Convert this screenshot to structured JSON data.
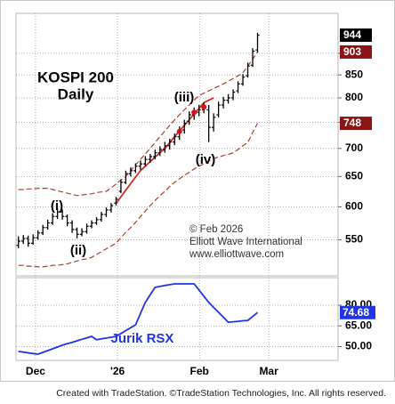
{
  "chart_data": [
    {
      "type": "ohlc",
      "title": "KOSPI 200",
      "subtitle": "Daily",
      "log_scale": true,
      "grid": true,
      "xlim": [
        -0.5,
        65.5
      ],
      "ylim": [
        500,
        1000
      ],
      "yticks": [
        550,
        600,
        650,
        700,
        750,
        800,
        850,
        900
      ],
      "color": "#000000",
      "open": [
        542,
        548,
        552,
        545,
        553,
        560,
        568,
        575,
        585,
        592,
        585,
        575,
        565,
        558,
        562,
        570,
        575,
        580,
        588,
        595,
        606,
        625,
        640,
        655,
        660,
        668,
        672,
        680,
        685,
        692,
        698,
        705,
        712,
        722,
        735,
        752,
        765,
        770,
        775,
        775,
        740,
        765,
        785,
        795,
        800,
        815,
        830,
        848,
        872,
        908
      ],
      "high": [
        555,
        557,
        556,
        558,
        564,
        572,
        580,
        590,
        598,
        596,
        588,
        579,
        568,
        567,
        574,
        579,
        584,
        592,
        599,
        606,
        616,
        645,
        660,
        666,
        673,
        678,
        686,
        690,
        698,
        704,
        712,
        718,
        728,
        742,
        755,
        772,
        780,
        785,
        790,
        785,
        768,
        792,
        802,
        808,
        818,
        836,
        852,
        878,
        912,
        950
      ],
      "low": [
        538,
        544,
        540,
        543,
        550,
        557,
        565,
        572,
        581,
        580,
        570,
        560,
        552,
        555,
        559,
        567,
        572,
        577,
        584,
        591,
        602,
        622,
        637,
        650,
        656,
        662,
        668,
        674,
        680,
        686,
        692,
        698,
        706,
        716,
        728,
        745,
        755,
        762,
        768,
        712,
        732,
        760,
        778,
        788,
        795,
        810,
        826,
        844,
        868,
        902
      ],
      "close": [
        548,
        552,
        545,
        553,
        560,
        568,
        575,
        585,
        592,
        585,
        575,
        565,
        558,
        562,
        570,
        575,
        580,
        588,
        595,
        602,
        612,
        640,
        655,
        660,
        668,
        672,
        680,
        685,
        692,
        698,
        705,
        712,
        722,
        735,
        748,
        765,
        770,
        775,
        782,
        740,
        760,
        785,
        795,
        800,
        812,
        830,
        845,
        870,
        905,
        944
      ],
      "markers": {
        "color": "#e01010",
        "values": [
          null,
          null,
          null,
          null,
          null,
          null,
          null,
          null,
          null,
          null,
          null,
          null,
          null,
          null,
          null,
          null,
          null,
          null,
          null,
          null,
          null,
          null,
          null,
          null,
          null,
          null,
          null,
          null,
          null,
          null,
          null,
          null,
          null,
          732,
          null,
          null,
          770,
          null,
          781,
          null,
          null,
          null,
          null,
          null,
          null,
          null,
          null,
          null,
          null,
          null
        ]
      },
      "series": [
        {
          "color": "#a8432e",
          "style": "dashed",
          "values": [
            628,
            628,
            629,
            629,
            630,
            630,
            630,
            628,
            626,
            624,
            622,
            620,
            618,
            619,
            620,
            621,
            623,
            624,
            625,
            631,
            637,
            644,
            650,
            660,
            670,
            680,
            690,
            700,
            711,
            722,
            733,
            744,
            755,
            765,
            775,
            785,
            795,
            805,
            810,
            815,
            820,
            825,
            830,
            836,
            842,
            848,
            855,
            870,
            886,
            903
          ]
        },
        {
          "color": "#c8302a",
          "style": "solid",
          "values": [
            null,
            null,
            null,
            null,
            null,
            null,
            null,
            null,
            null,
            null,
            null,
            null,
            null,
            null,
            null,
            null,
            null,
            null,
            null,
            null,
            605,
            616,
            627,
            638,
            649,
            660,
            668,
            676,
            684,
            692,
            700,
            711,
            722,
            733,
            744,
            755,
            767,
            778,
            790,
            795,
            800,
            null,
            null,
            null,
            null,
            null,
            null,
            null,
            null,
            null
          ]
        },
        {
          "color": "#a8432e",
          "style": "dashed",
          "values": [
            514,
            514,
            513,
            513,
            512,
            512,
            513,
            514,
            514,
            515,
            516,
            518,
            520,
            522,
            523,
            525,
            529,
            533,
            537,
            541,
            545,
            553,
            561,
            568,
            576,
            585,
            593,
            602,
            610,
            618,
            625,
            633,
            640,
            646,
            652,
            657,
            663,
            668,
            672,
            677,
            682,
            684,
            687,
            689,
            692,
            698,
            705,
            711,
            730,
            748
          ]
        }
      ],
      "price_labels": [
        {
          "path": "close.49",
          "color": "#000000"
        },
        {
          "path": "series.0.values.49",
          "color": "#8b1414"
        },
        {
          "path": "series.2.values.49",
          "color": "#8b1414"
        }
      ],
      "wave_labels": [
        "(i)",
        "(ii)",
        "(iii)",
        "(iv)"
      ],
      "notes": [
        "© Feb 2026",
        "Elliott Wave International",
        "www.elliottwave.com"
      ]
    },
    {
      "type": "line",
      "title": "Jurik RSX",
      "grid": true,
      "xlim": [
        -0.5,
        65.5
      ],
      "ylim": [
        40,
        100
      ],
      "xticks": [
        {
          "value": 3.5,
          "label": "Dec"
        },
        {
          "value": 20.3,
          "label": "'26"
        },
        {
          "value": 37.1,
          "label": "Feb"
        },
        {
          "value": 51.3,
          "label": "Mar"
        }
      ],
      "yticks": [
        {
          "value": 50,
          "label": "50.00"
        },
        {
          "value": 65,
          "label": "65.00"
        },
        {
          "value": 80,
          "label": "80.00"
        }
      ],
      "series": [
        {
          "color": "#1f35e6",
          "values": [
            46.5,
            46,
            45.5,
            45,
            44.5,
            45.8,
            47.1,
            48.4,
            49.7,
            51,
            52.1,
            53.1,
            54.2,
            55.3,
            56.3,
            57.4,
            55,
            55.6,
            56.2,
            56.8,
            57.4,
            59.5,
            61.6,
            63.7,
            65.8,
            74,
            82,
            87.5,
            93,
            93.6,
            94.3,
            94.9,
            95.5,
            95.5,
            95.5,
            95.5,
            95.5,
            91,
            86.5,
            82,
            78.4,
            74.9,
            71.3,
            67.7,
            68,
            68.3,
            68.7,
            69,
            71.8,
            74.68
          ]
        }
      ]
    }
  ],
  "footer": "Created with TradeStation. ©TradeStation Technologies, Inc. All rights reserved."
}
